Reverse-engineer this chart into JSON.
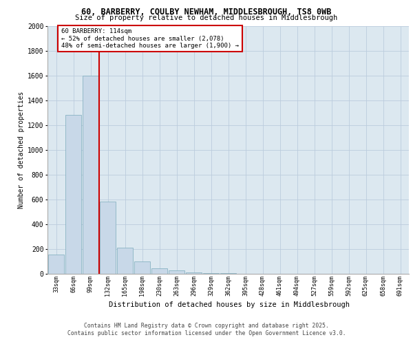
{
  "title_line1": "60, BARBERRY, COULBY NEWHAM, MIDDLESBROUGH, TS8 0WB",
  "title_line2": "Size of property relative to detached houses in Middlesbrough",
  "xlabel": "Distribution of detached houses by size in Middlesbrough",
  "ylabel": "Number of detached properties",
  "categories": [
    "33sqm",
    "66sqm",
    "99sqm",
    "132sqm",
    "165sqm",
    "198sqm",
    "230sqm",
    "263sqm",
    "296sqm",
    "329sqm",
    "362sqm",
    "395sqm",
    "428sqm",
    "461sqm",
    "494sqm",
    "527sqm",
    "559sqm",
    "592sqm",
    "625sqm",
    "658sqm",
    "691sqm"
  ],
  "values": [
    155,
    1280,
    1600,
    580,
    210,
    95,
    40,
    25,
    10,
    5,
    3,
    0,
    0,
    0,
    0,
    0,
    0,
    0,
    0,
    0,
    0
  ],
  "bar_color": "#c8d8e8",
  "bar_edge_color": "#7aaabb",
  "grid_color": "#bbccdd",
  "bg_color": "#dce8f0",
  "vline_x": 2.5,
  "vline_color": "#cc0000",
  "annotation_line1": "60 BARBERRY: 114sqm",
  "annotation_line2": "← 52% of detached houses are smaller (2,078)",
  "annotation_line3": "48% of semi-detached houses are larger (1,900) →",
  "footer_line1": "Contains HM Land Registry data © Crown copyright and database right 2025.",
  "footer_line2": "Contains public sector information licensed under the Open Government Licence v3.0.",
  "ylim": [
    0,
    2000
  ],
  "yticks": [
    0,
    200,
    400,
    600,
    800,
    1000,
    1200,
    1400,
    1600,
    1800,
    2000
  ]
}
